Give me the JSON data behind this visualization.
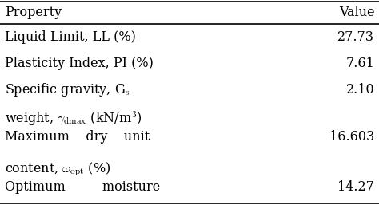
{
  "col_headers": [
    "Property",
    "Value"
  ],
  "rows_line1": [
    "Liquid Limit, LL (%)",
    "Plasticity Index, PI (%)",
    "Specific gravity, G",
    "Maximum    dry    unit",
    "Optimum         moisture"
  ],
  "rows_line2": [
    "",
    "",
    "",
    "weight, γ",
    "content, ω"
  ],
  "values": [
    "27.73",
    "7.61",
    "2.10",
    "16.603",
    "14.27"
  ],
  "background_color": "#ffffff",
  "line_color": "#000000",
  "font_size": 11.5,
  "header_font_size": 11.5
}
